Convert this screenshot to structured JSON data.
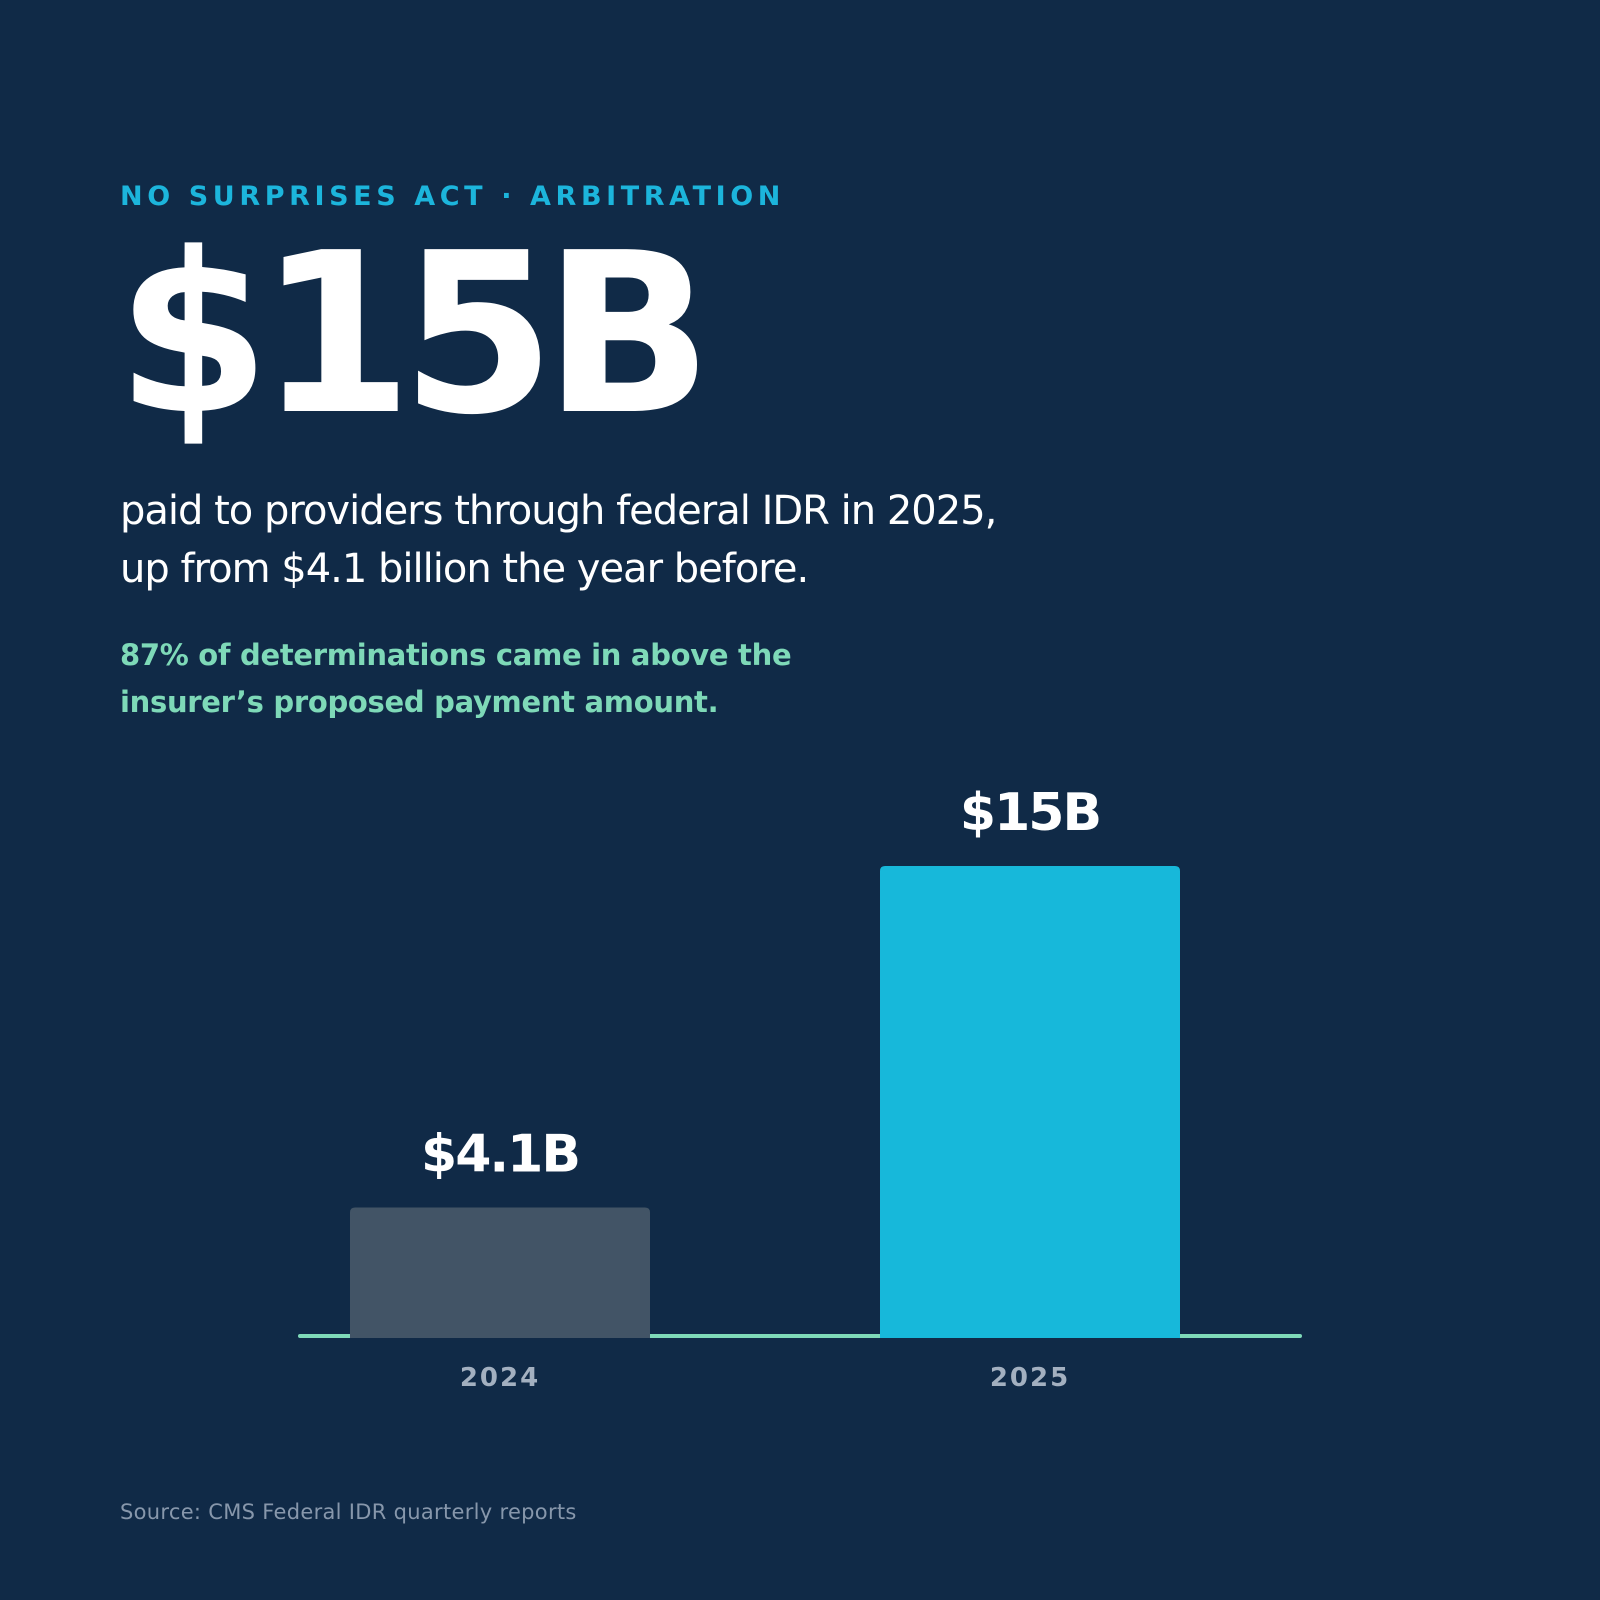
{
  "eyebrow": "NO SURPRISES ACT · ARBITRATION",
  "headline": "$15B",
  "subtitle": {
    "line1": "paid to providers through federal IDR in 2025,",
    "line2": "up from $4.1 billion the year before."
  },
  "highlight": {
    "line1": "87% of determinations came in above the",
    "line2": "insurer’s proposed payment amount."
  },
  "source": "Source: CMS Federal IDR quarterly reports",
  "colors": {
    "background": "#102a47",
    "accent": "#1cb5dc",
    "highlight": "#7ed9b8",
    "bar_2024": "#425466",
    "bar_2025": "#17b8da",
    "baseline": "#7ed9b8",
    "tick_label": "#a3b0c0"
  },
  "chart_data": {
    "type": "bar",
    "categories": [
      "2024",
      "2025"
    ],
    "values": [
      4.1,
      15
    ],
    "data_labels": [
      "$4.1B",
      "$15B"
    ],
    "bar_colors": [
      "#425466",
      "#17b8da"
    ],
    "title": "",
    "xlabel": "",
    "ylabel": "",
    "grid": false,
    "legend": "none"
  }
}
